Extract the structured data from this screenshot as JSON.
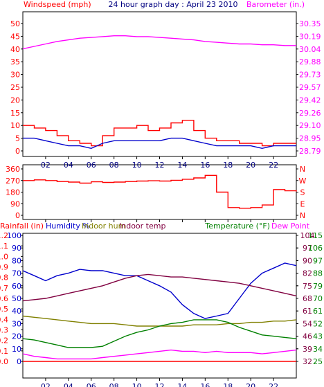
{
  "title": "24 hour graph day : April 23 2010",
  "colors": {
    "wind_gust": "#ff0000",
    "wind_avg": "#0000cc",
    "barometer": "#ff00ff",
    "direction": "#ff0000",
    "humidity": "#0000cc",
    "indoor_hum": "#808000",
    "indoor_temp": "#800040",
    "temperature": "#008000",
    "dew_point": "#ff00ff",
    "rainfall": "#ff0000"
  },
  "x_ticks": [
    "02",
    "04",
    "06",
    "08",
    "10",
    "12",
    "14",
    "16",
    "18",
    "20",
    "22"
  ],
  "chart_data": [
    {
      "type": "line",
      "label_left": "Windspeed (mph)",
      "label_right": "Barometer (in.)",
      "left_ticks": [
        "50",
        "45",
        "40",
        "35",
        "30",
        "25",
        "20",
        "15",
        "10",
        "5",
        "0"
      ],
      "right_ticks": [
        "30.35",
        "30.19",
        "30.04",
        "29.88",
        "29.73",
        "29.57",
        "29.42",
        "29.26",
        "29.10",
        "28.95",
        "28.79"
      ],
      "ylim_left": [
        0,
        50
      ],
      "ylim_right": [
        28.79,
        30.35
      ],
      "x_hours": [
        0,
        1,
        2,
        3,
        4,
        5,
        6,
        7,
        8,
        9,
        10,
        11,
        12,
        13,
        14,
        15,
        16,
        17,
        18,
        19,
        20,
        21,
        22,
        23,
        24
      ],
      "series": [
        {
          "key": "gust",
          "values": [
            10,
            9,
            8,
            6,
            4,
            3,
            2,
            6,
            9,
            9,
            10,
            8,
            9,
            11,
            12,
            8,
            5,
            4,
            4,
            3,
            3,
            2,
            3,
            3,
            3
          ]
        },
        {
          "key": "avg",
          "values": [
            5,
            5,
            4,
            3,
            2,
            2,
            1,
            3,
            4,
            4,
            4,
            4,
            4,
            5,
            5,
            4,
            3,
            2,
            2,
            2,
            2,
            1,
            2,
            2,
            2
          ]
        },
        {
          "key": "barometer",
          "values": [
            30.04,
            30.07,
            30.1,
            30.13,
            30.15,
            30.17,
            30.18,
            30.19,
            30.2,
            30.2,
            30.19,
            30.19,
            30.18,
            30.17,
            30.16,
            30.15,
            30.13,
            30.12,
            30.11,
            30.1,
            30.1,
            30.09,
            30.09,
            30.08,
            30.08
          ]
        }
      ]
    },
    {
      "type": "line",
      "left_ticks": [
        "360",
        "270",
        "180",
        "90",
        "0"
      ],
      "right_ticks": [
        "N",
        "W",
        "S",
        "E",
        "N"
      ],
      "ylim": [
        0,
        360
      ],
      "x_hours": [
        0,
        1,
        2,
        3,
        4,
        5,
        6,
        7,
        8,
        9,
        10,
        11,
        12,
        13,
        14,
        15,
        16,
        17,
        18,
        19,
        20,
        21,
        22,
        23,
        24
      ],
      "series": [
        {
          "key": "direction",
          "values": [
            270,
            275,
            270,
            262,
            258,
            250,
            260,
            255,
            258,
            262,
            266,
            268,
            266,
            272,
            280,
            290,
            310,
            180,
            60,
            55,
            60,
            80,
            200,
            190,
            185
          ]
        }
      ]
    },
    {
      "type": "line",
      "labels": {
        "rainfall": "Rainfall (in)",
        "humidity": "Humidity %",
        "indoor_hum": "Indoor hum",
        "indoor_temp": "Indoor temp",
        "temperature": "Temperature (°F)",
        "dew_point": "Dew Point"
      },
      "rain_ticks": [
        "1.2",
        "1.1",
        "1.0",
        "0.9",
        "0.8",
        "0.7",
        "0.6",
        "0.5",
        "0.4",
        "0.3",
        "0.2",
        "0.1",
        "0.0"
      ],
      "humidity_ticks": [
        "100",
        "90",
        "80",
        "70",
        "60",
        "50",
        "40",
        "30",
        "20",
        "10",
        "0"
      ],
      "temp_ticks_a": [
        "104",
        "97",
        "90",
        "82",
        "75",
        "68",
        "61",
        "54",
        "46",
        "39",
        "32"
      ],
      "temp_ticks_b": [
        "115",
        "106",
        "97",
        "88",
        "79",
        "70",
        "61",
        "52",
        "43",
        "34",
        "25"
      ],
      "ylim_humidity": [
        0,
        100
      ],
      "x_hours": [
        0,
        1,
        2,
        3,
        4,
        5,
        6,
        7,
        8,
        9,
        10,
        11,
        12,
        13,
        14,
        15,
        16,
        17,
        18,
        19,
        20,
        21,
        22,
        23,
        24
      ],
      "series": [
        {
          "key": "humidity",
          "values": [
            72,
            68,
            64,
            68,
            70,
            73,
            72,
            72,
            70,
            68,
            68,
            64,
            60,
            55,
            45,
            38,
            34,
            36,
            38,
            50,
            62,
            70,
            74,
            78,
            76
          ]
        },
        {
          "key": "indoor_temp",
          "values": [
            48,
            49,
            50,
            52,
            54,
            56,
            58,
            60,
            63,
            66,
            68,
            69,
            68,
            67,
            67,
            66,
            65,
            64,
            63,
            62,
            60,
            58,
            56,
            54,
            52
          ]
        },
        {
          "key": "indoor_hum",
          "values": [
            36,
            35,
            34,
            33,
            32,
            31,
            30,
            30,
            30,
            29,
            28,
            28,
            28,
            28,
            28,
            29,
            29,
            29,
            30,
            30,
            31,
            31,
            32,
            32,
            33
          ]
        },
        {
          "key": "temperature",
          "values": [
            18,
            17,
            15,
            13,
            11,
            11,
            11,
            12,
            16,
            20,
            23,
            25,
            28,
            30,
            31,
            33,
            33,
            33,
            31,
            27,
            24,
            21,
            20,
            19,
            18
          ]
        },
        {
          "key": "dew_point",
          "values": [
            6,
            4,
            3,
            2,
            2,
            2,
            2,
            3,
            4,
            5,
            6,
            7,
            8,
            9,
            8,
            8,
            7,
            8,
            7,
            7,
            7,
            6,
            7,
            8,
            9
          ]
        },
        {
          "key": "rainfall",
          "values": [
            0,
            0,
            0,
            0,
            0,
            0,
            0,
            0,
            0,
            0,
            0,
            0,
            0,
            0,
            0,
            0,
            0,
            0,
            0,
            0,
            0,
            0,
            0,
            0,
            0
          ]
        }
      ]
    }
  ]
}
